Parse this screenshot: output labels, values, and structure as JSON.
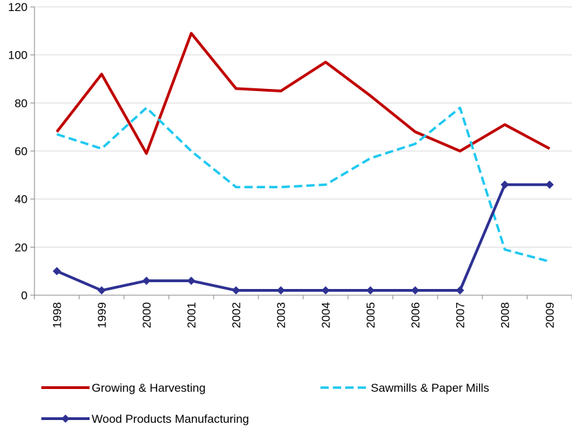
{
  "chart_data": {
    "type": "line",
    "title": "",
    "xlabel": "",
    "ylabel": "",
    "categories": [
      "1998",
      "1999",
      "2000",
      "2001",
      "2002",
      "2003",
      "2004",
      "2005",
      "2006",
      "2007",
      "2008",
      "2009"
    ],
    "ylim": [
      0,
      120
    ],
    "yticks": [
      0,
      20,
      40,
      60,
      80,
      100,
      120
    ],
    "grid": true,
    "legend_position": "bottom",
    "series": [
      {
        "name": "Growing & Harvesting",
        "values": [
          68,
          92,
          59,
          109,
          86,
          85,
          97,
          83,
          68,
          60,
          71,
          61
        ],
        "color": "#c00000",
        "style": "solid",
        "marker": "none"
      },
      {
        "name": "Sawmills & Paper Mills",
        "values": [
          67,
          61,
          78,
          60,
          45,
          45,
          46,
          57,
          63,
          78,
          19,
          14
        ],
        "color": "#1ec8f0",
        "style": "dashed",
        "marker": "none"
      },
      {
        "name": "Wood Products Manufacturing",
        "values": [
          10,
          2,
          6,
          6,
          2,
          2,
          2,
          2,
          2,
          2,
          46,
          46
        ],
        "color": "#2e3192",
        "style": "solid",
        "marker": "diamond"
      }
    ]
  }
}
